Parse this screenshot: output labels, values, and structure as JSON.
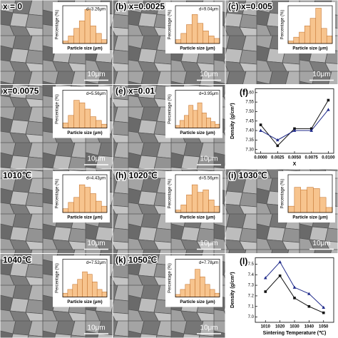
{
  "chart_data": [
    {
      "type": "histogram",
      "label": "x = 0",
      "annotation": "d=3.26μm",
      "scale_bar": "10μm",
      "ylabel": "Percentage (%)",
      "xlabel": "Particle size (μm)",
      "bins": [
        1,
        2,
        3,
        4,
        5,
        6,
        7,
        8,
        9
      ],
      "values": [
        2,
        6,
        12,
        18,
        27,
        14,
        8,
        3
      ],
      "ylim": [
        0,
        30
      ],
      "color": "#f7c48e"
    },
    {
      "type": "histogram",
      "label": "(b) x=0.0025",
      "annotation": "d=9.04μm",
      "scale_bar": "10μm",
      "ylabel": "Percentage (%)",
      "xlabel": "Particle size (μm)",
      "bins": [
        1,
        2,
        3,
        4,
        5,
        6,
        7,
        8,
        9
      ],
      "values": [
        3,
        8,
        15,
        23,
        16,
        10,
        6,
        4
      ],
      "ylim": [
        0,
        30
      ],
      "color": "#f7c48e"
    },
    {
      "type": "histogram",
      "label": "(c) x=0.005",
      "scale_bar": "10μm",
      "ylabel": "Percentage (%)",
      "xlabel": "Particle size (μm)",
      "bins": [
        1,
        2,
        3,
        4,
        5,
        6,
        7,
        8,
        9
      ],
      "values": [
        2,
        5,
        9,
        14,
        20,
        28,
        12,
        6
      ],
      "ylim": [
        0,
        30
      ],
      "color": "#f7c48e"
    },
    {
      "type": "histogram",
      "label": "x=0.0075",
      "annotation": "d=5.56μm",
      "scale_bar": "10μm",
      "ylabel": "Percentage (%)",
      "xlabel": "Particle size (μm)",
      "bins": [
        1,
        2,
        3,
        4,
        5,
        6,
        7,
        8,
        9
      ],
      "values": [
        4,
        10,
        22,
        20,
        15,
        9,
        6,
        3
      ],
      "ylim": [
        0,
        30
      ],
      "color": "#f7c48e"
    },
    {
      "type": "histogram",
      "label": "(e) x=0.01",
      "annotation": "d=3.95μm",
      "scale_bar": "10μm",
      "ylabel": "Percentage (%)",
      "xlabel": "Particle size (μm)",
      "bins": [
        1,
        2,
        3,
        4,
        5,
        6,
        7,
        8,
        9,
        10,
        11
      ],
      "values": [
        2,
        6,
        10,
        18,
        14,
        20,
        12,
        8,
        5,
        3
      ],
      "ylim": [
        0,
        30
      ],
      "color": "#f7c48e"
    },
    {
      "type": "line",
      "label": "(f)",
      "xlabel": "X",
      "ylabel": "Density (g/cm³)",
      "x": [
        0,
        0.0025,
        0.005,
        0.0075,
        0.01
      ],
      "xlim": [
        -0.0008,
        0.0108
      ],
      "xticks": [
        {
          "value": 0,
          "label": "0.0000"
        },
        {
          "value": 0.0025,
          "label": "0.0025"
        },
        {
          "value": 0.005,
          "label": "0.0050"
        },
        {
          "value": 0.0075,
          "label": "0.0075"
        },
        {
          "value": 0.01,
          "label": "0.0100"
        }
      ],
      "ylim": [
        7.28,
        7.62
      ],
      "yticks": [
        {
          "value": 7.3,
          "label": "7.30"
        },
        {
          "value": 7.35,
          "label": "7.35"
        },
        {
          "value": 7.4,
          "label": "7.40"
        },
        {
          "value": 7.45,
          "label": "7.45"
        },
        {
          "value": 7.5,
          "label": "7.50"
        },
        {
          "value": 7.55,
          "label": "7.55"
        },
        {
          "value": 7.6,
          "label": "7.60"
        }
      ],
      "series": [
        {
          "color": "#111111",
          "values": [
            7.43,
            7.32,
            7.41,
            7.41,
            7.56
          ]
        },
        {
          "color": "#1f2a8a",
          "values": [
            7.4,
            7.35,
            7.4,
            7.4,
            7.51
          ]
        }
      ]
    },
    {
      "type": "histogram",
      "label": "1010℃",
      "annotation": "d=4.43μm",
      "scale_bar": "10μm",
      "ylabel": "Percentage (%)",
      "xlabel": "Particle size (μm)",
      "bins": [
        1,
        2,
        3,
        4,
        5,
        6,
        7,
        8,
        9
      ],
      "values": [
        3,
        8,
        12,
        22,
        20,
        15,
        9,
        5
      ],
      "ylim": [
        0,
        30
      ],
      "color": "#f7c48e"
    },
    {
      "type": "histogram",
      "label": "(h) 1020℃",
      "annotation": "d=5.56μm",
      "scale_bar": "10μm",
      "ylabel": "Percentage (%)",
      "xlabel": "Particle size (μm)",
      "bins": [
        1,
        2,
        3,
        4,
        5,
        6,
        7,
        8,
        9
      ],
      "values": [
        2,
        6,
        14,
        22,
        16,
        18,
        10,
        5
      ],
      "ylim": [
        0,
        30
      ],
      "color": "#f7c48e"
    },
    {
      "type": "histogram",
      "label": "(i) 1030℃",
      "scale_bar": "10μm",
      "ylabel": "Percentage (%)",
      "xlabel": "Particle size (μm)",
      "bins": [
        1,
        2,
        3,
        4,
        5,
        6,
        7,
        8
      ],
      "values": [
        5,
        20,
        18,
        20,
        19,
        12,
        4
      ],
      "ylim": [
        0,
        30
      ],
      "color": "#f7c48e"
    },
    {
      "type": "histogram",
      "label": "1040℃",
      "annotation": "d=7.52μm",
      "scale_bar": "10μm",
      "ylabel": "Percentage (%)",
      "xlabel": "Particle size (μm)",
      "bins": [
        1,
        2,
        3,
        4,
        5,
        6,
        7,
        8,
        9,
        10
      ],
      "values": [
        3,
        6,
        10,
        14,
        20,
        18,
        12,
        6,
        4
      ],
      "ylim": [
        0,
        30
      ],
      "color": "#f7c48e"
    },
    {
      "type": "histogram",
      "label": "(k) 1050℃",
      "annotation": "d=7.78μm",
      "scale_bar": "10μm",
      "ylabel": "Percentage (%)",
      "xlabel": "Particle size (μm)",
      "bins": [
        1,
        2,
        3,
        4,
        5,
        6,
        7,
        8,
        9,
        10
      ],
      "values": [
        2,
        6,
        10,
        14,
        22,
        16,
        10,
        6,
        3
      ],
      "ylim": [
        0,
        30
      ],
      "color": "#f7c48e"
    },
    {
      "type": "line",
      "label": "(l)",
      "xlabel": "Sintering Temperature (℃)",
      "ylabel": "Density (g/cm³)",
      "x": [
        1010,
        1020,
        1030,
        1040,
        1050
      ],
      "xlim": [
        1003,
        1057
      ],
      "xticks": [
        1010,
        1020,
        1030,
        1040,
        1050
      ],
      "ylim": [
        6.95,
        7.56
      ],
      "yticks": [
        {
          "value": 7.0,
          "label": "7.0"
        },
        {
          "value": 7.1,
          "label": "7.1"
        },
        {
          "value": 7.2,
          "label": "7.2"
        },
        {
          "value": 7.3,
          "label": "7.3"
        },
        {
          "value": 7.4,
          "label": "7.4"
        },
        {
          "value": 7.5,
          "label": "7.5"
        }
      ],
      "series": [
        {
          "color": "#111111",
          "values": [
            7.24,
            7.39,
            7.18,
            7.1,
            7.04
          ]
        },
        {
          "color": "#1f2a8a",
          "values": [
            7.37,
            7.52,
            7.28,
            7.22,
            7.09
          ]
        }
      ]
    }
  ]
}
